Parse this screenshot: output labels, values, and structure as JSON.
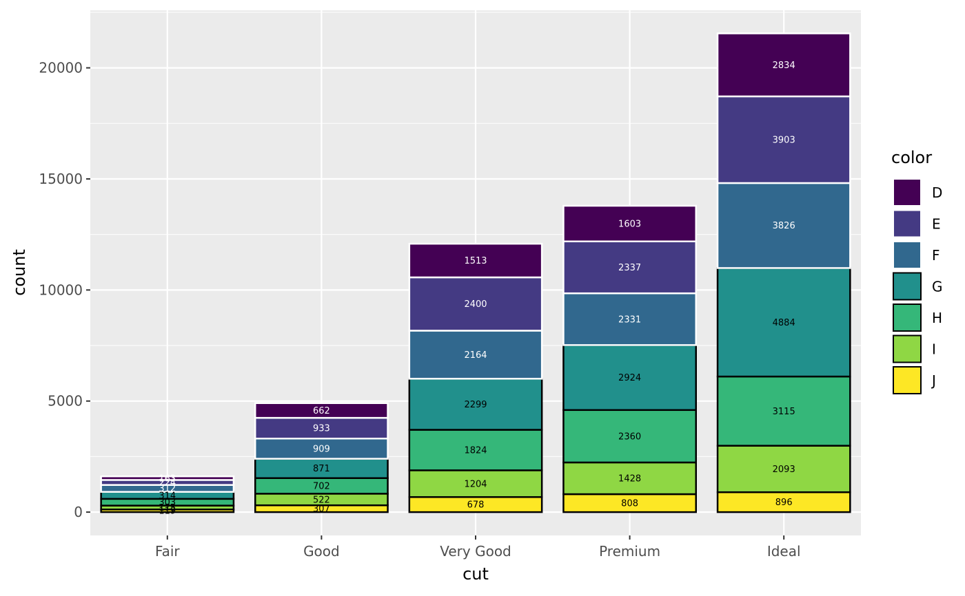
{
  "chart_data": {
    "type": "bar",
    "stacked": true,
    "xlabel": "cut",
    "ylabel": "count",
    "ylim": [
      -1050,
      22590
    ],
    "yticks": [
      0,
      5000,
      10000,
      15000,
      20000
    ],
    "yticks_labels": [
      "0",
      "5000",
      "10000",
      "15000",
      "20000"
    ],
    "grid": true,
    "legend_title": "color",
    "legend_position": "right",
    "categories": [
      "Fair",
      "Good",
      "Very Good",
      "Premium",
      "Ideal"
    ],
    "series": [
      {
        "name": "D",
        "color": "#440154",
        "outline": "#ffffff",
        "label_color": "#ffffff",
        "values": [
          163,
          662,
          1513,
          1603,
          2834
        ]
      },
      {
        "name": "E",
        "color": "#443A83",
        "outline": "#ffffff",
        "label_color": "#ffffff",
        "values": [
          224,
          933,
          2400,
          2337,
          3903
        ]
      },
      {
        "name": "F",
        "color": "#31688E",
        "outline": "#ffffff",
        "label_color": "#ffffff",
        "values": [
          312,
          909,
          2164,
          2331,
          3826
        ]
      },
      {
        "name": "G",
        "color": "#21908C",
        "outline": "#000000",
        "label_color": "#000000",
        "values": [
          314,
          871,
          2299,
          2924,
          4884
        ]
      },
      {
        "name": "H",
        "color": "#35B779",
        "outline": "#000000",
        "label_color": "#000000",
        "values": [
          303,
          702,
          1824,
          2360,
          3115
        ]
      },
      {
        "name": "I",
        "color": "#8FD744",
        "outline": "#000000",
        "label_color": "#000000",
        "values": [
          175,
          522,
          1204,
          1428,
          2093
        ]
      },
      {
        "name": "J",
        "color": "#FDE725",
        "outline": "#000000",
        "label_color": "#000000",
        "values": [
          119,
          307,
          678,
          808,
          896
        ]
      }
    ]
  }
}
